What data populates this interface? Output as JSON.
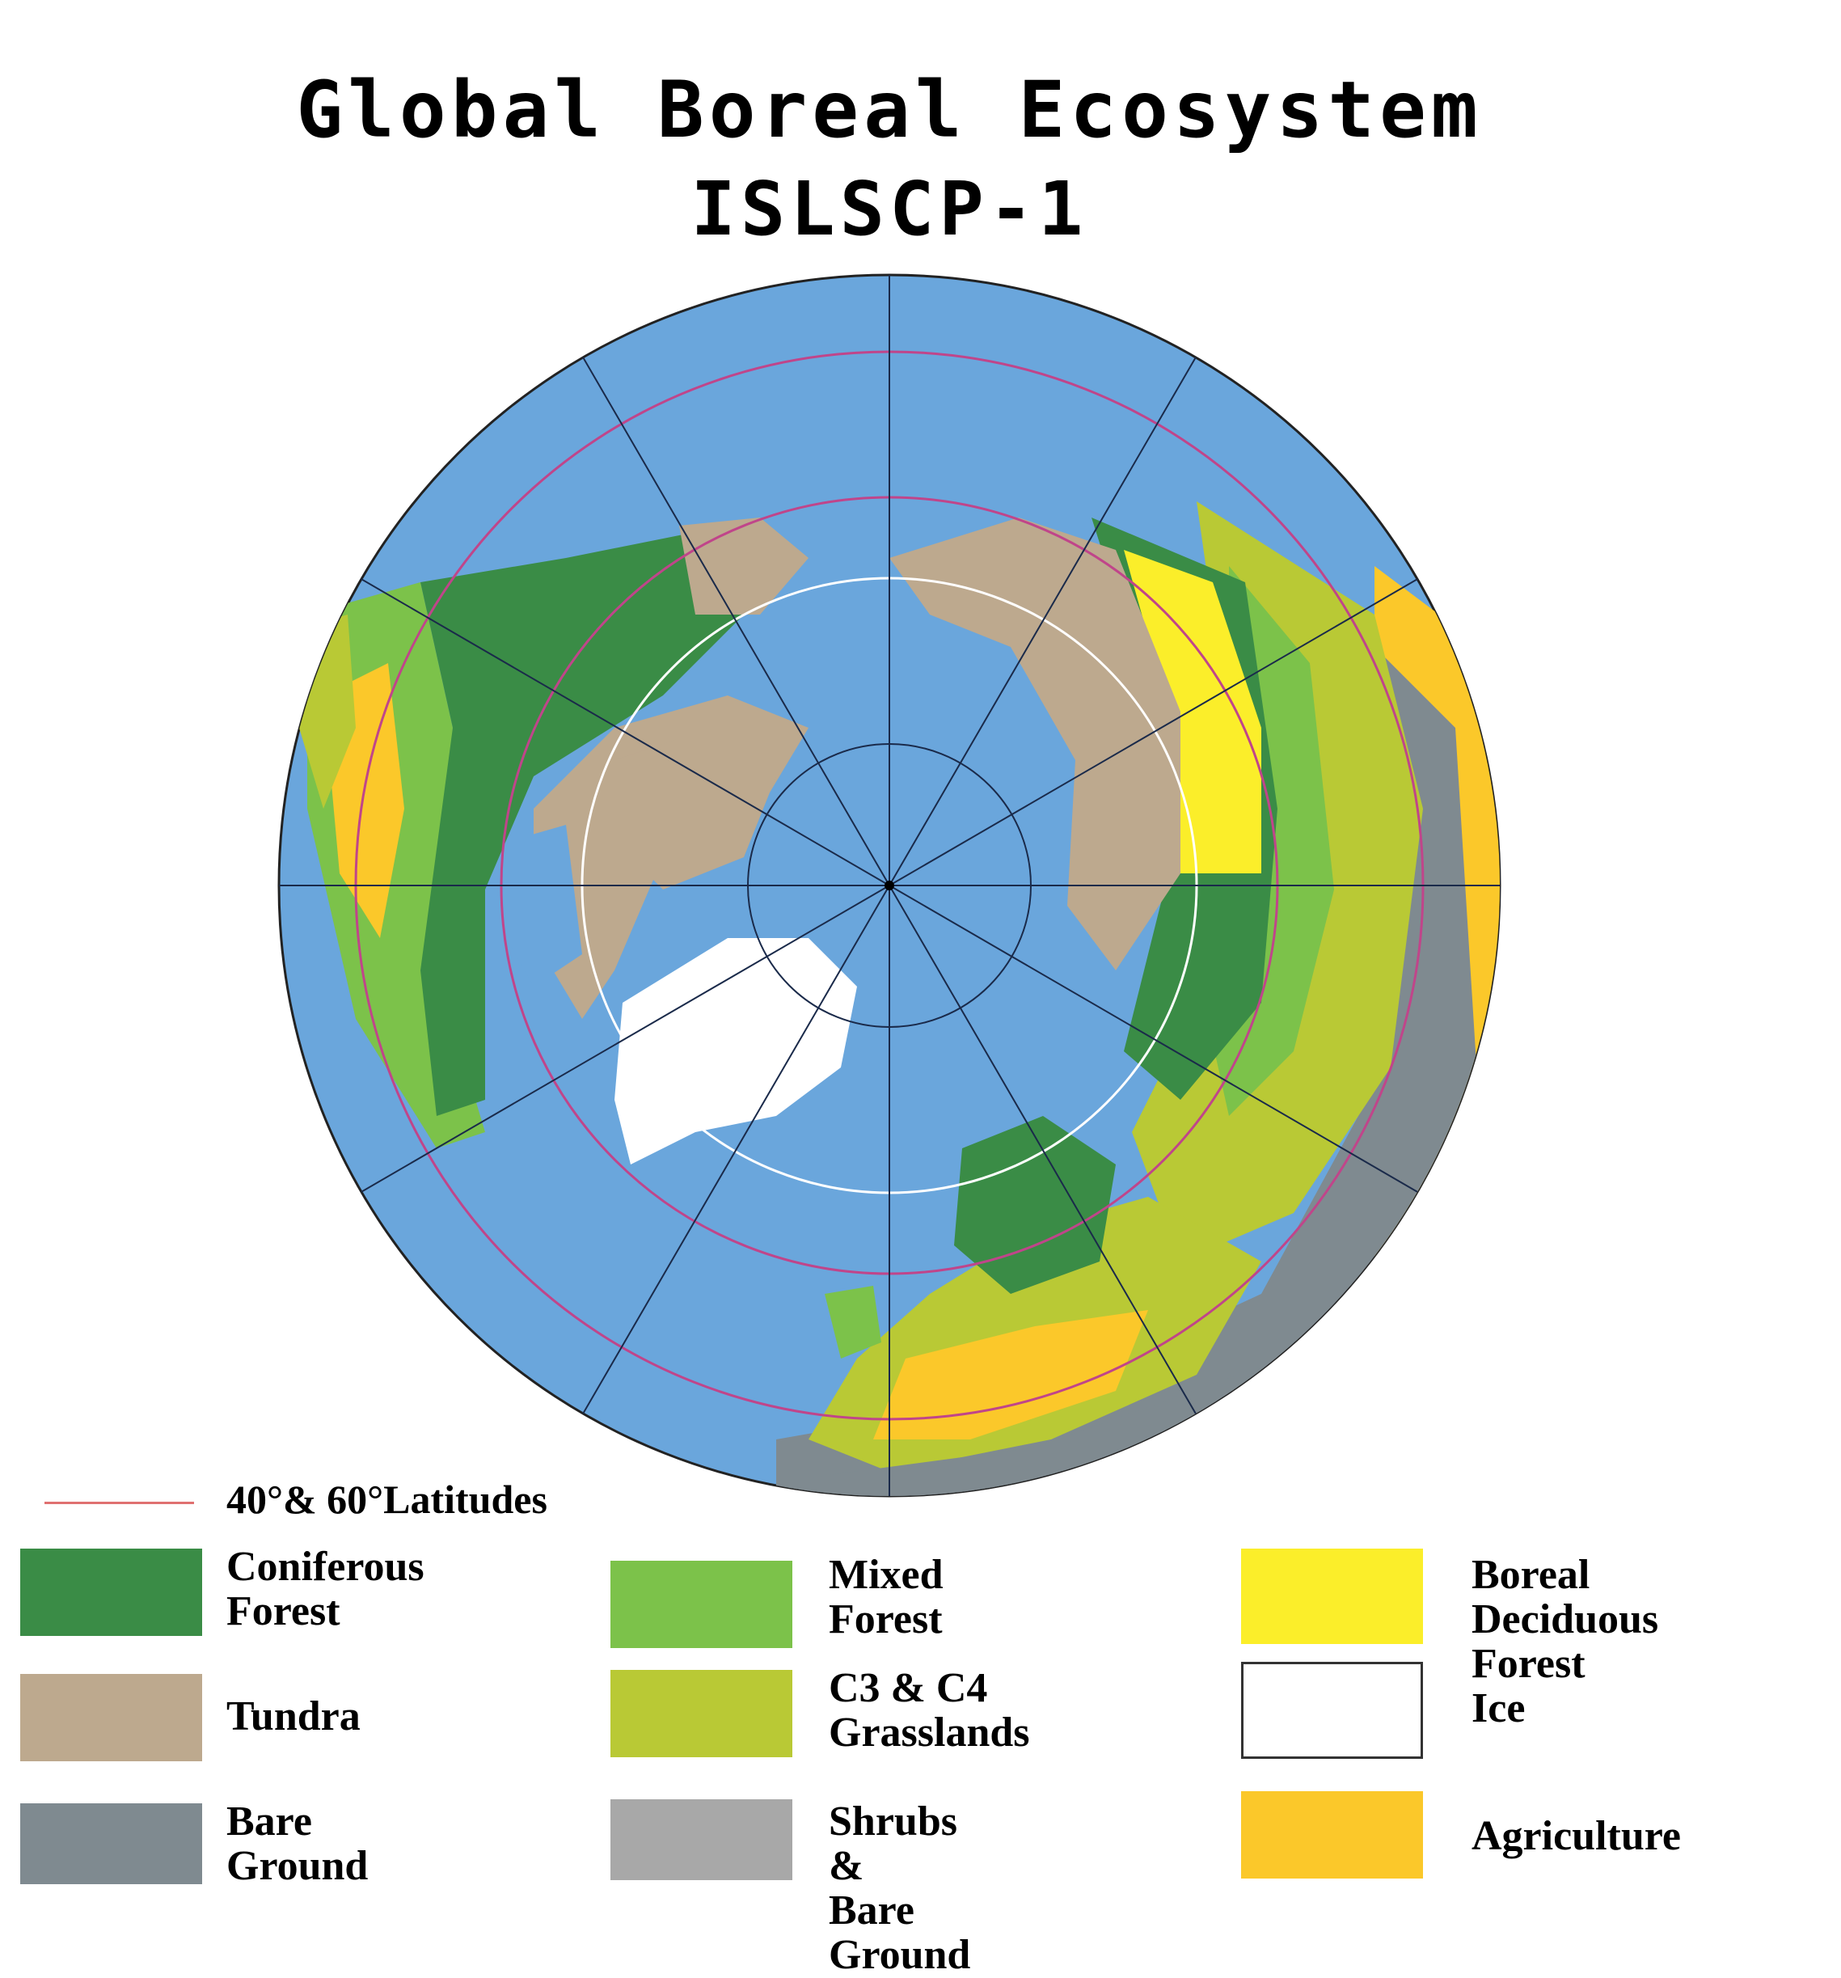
{
  "title": {
    "line1": "Global Boreal Ecosystem",
    "line2": "ISLSCP-1"
  },
  "map": {
    "ocean_color": "#6aa6dc",
    "projection": "north polar azimuthal",
    "latitude_circle_color": "#c0458a"
  },
  "latitude_legend": {
    "label": "40°& 60°Latitudes",
    "color": "#e07070"
  },
  "legend": [
    {
      "label": "Coniferous\nForest",
      "color": "#3a8c46"
    },
    {
      "label": "Mixed\nForest",
      "color": "#7cc24a"
    },
    {
      "label": "Boreal\nDeciduous Forest",
      "color": "#fbee2a"
    },
    {
      "label": "Tundra",
      "color": "#bda98e"
    },
    {
      "label": "C3 & C4\nGrasslands",
      "color": "#b9c935"
    },
    {
      "label": "Ice",
      "color": "#ffffff"
    },
    {
      "label": "Bare\nGround",
      "color": "#7f8a90"
    },
    {
      "label": "Shrubs &\nBare Ground",
      "color": "#a8a8a8"
    },
    {
      "label": "Agriculture",
      "color": "#fbc82a"
    }
  ]
}
